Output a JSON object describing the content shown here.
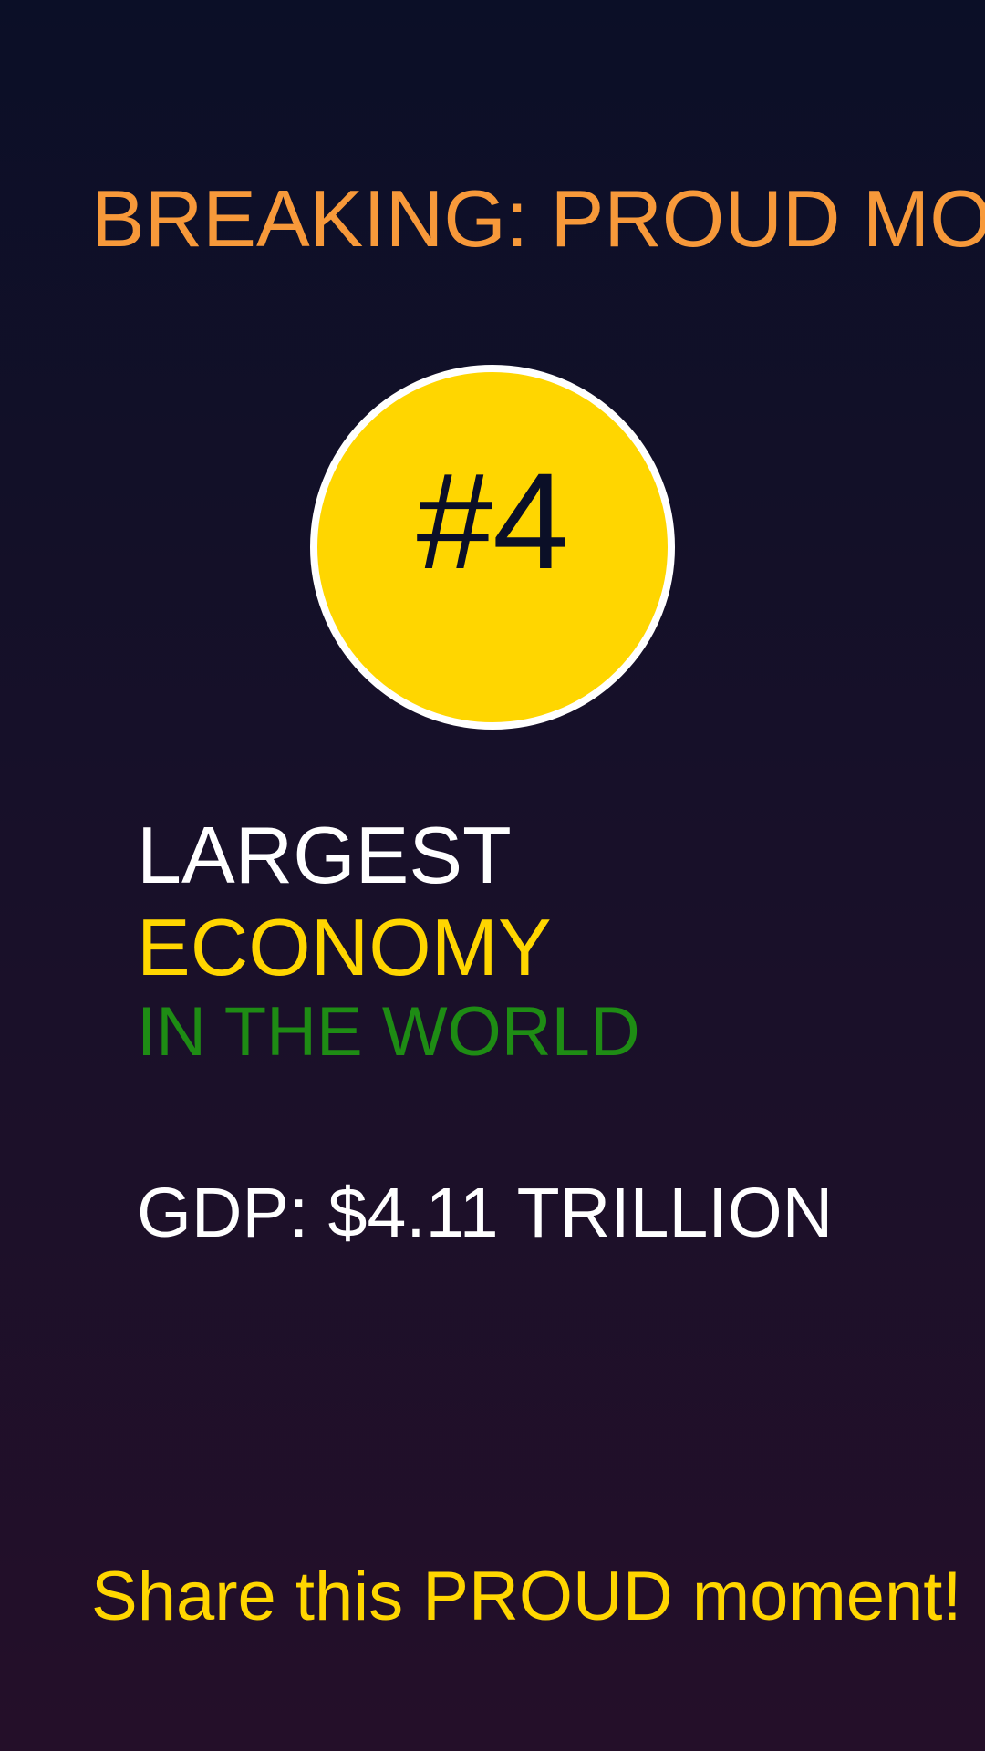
{
  "header": {
    "title": "BREAKING: PROUD MOMENT"
  },
  "badge": {
    "label": "#4"
  },
  "headline": {
    "line1": "LARGEST",
    "line2": "ECONOMY",
    "line3": "IN THE WORLD"
  },
  "stat": {
    "text": "GDP: $4.11 TRILLION"
  },
  "footer": {
    "text": "Share this PROUD moment! ☐"
  }
}
